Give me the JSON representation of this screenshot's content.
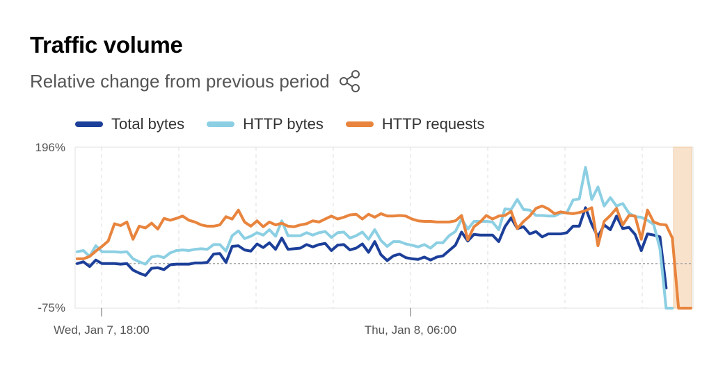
{
  "header": {
    "title": "Traffic volume",
    "subtitle": "Relative change from previous period",
    "share_icon": "share-icon"
  },
  "colors": {
    "total_bytes": "#1c3f99",
    "http_bytes": "#8ccfe3",
    "http_requests": "#e8843d",
    "highlight": "#f8e2cc"
  },
  "chart_data": {
    "type": "line",
    "ylim": [
      "-75%",
      "196%"
    ],
    "y_tick_labels": [
      "196%",
      "-75%"
    ],
    "x_tick_labels": [
      "Wed, Jan 7, 18:00",
      "Thu, Jan 8, 06:00"
    ],
    "grid": true,
    "legend_placement": "top-left",
    "series": [
      {
        "name": "Total bytes",
        "values": [
          0,
          3,
          -5,
          6,
          0,
          0,
          0,
          -1,
          0,
          -11,
          -16,
          -20,
          -8,
          -7,
          -10,
          -2,
          -1,
          -1,
          -1,
          1,
          1,
          2,
          16,
          17,
          2,
          29,
          30,
          23,
          21,
          33,
          27,
          35,
          24,
          43,
          24,
          25,
          26,
          32,
          28,
          32,
          34,
          22,
          31,
          32,
          23,
          26,
          33,
          19,
          37,
          15,
          5,
          13,
          16,
          10,
          8,
          7,
          11,
          6,
          11,
          13,
          22,
          31,
          53,
          38,
          49,
          48,
          48,
          48,
          37,
          62,
          77,
          59,
          62,
          50,
          54,
          45,
          50,
          50,
          50,
          52,
          63,
          63,
          94,
          66,
          45,
          65,
          57,
          80,
          59,
          61,
          49,
          22,
          50,
          48,
          45,
          -41
        ]
      },
      {
        "name": "HTTP bytes",
        "values": [
          20,
          22,
          12,
          30,
          20,
          20,
          20,
          19,
          20,
          8,
          3,
          -1,
          11,
          13,
          10,
          18,
          22,
          23,
          22,
          24,
          25,
          24,
          32,
          32,
          21,
          47,
          55,
          42,
          46,
          52,
          48,
          57,
          46,
          72,
          47,
          47,
          47,
          52,
          48,
          52,
          54,
          44,
          52,
          53,
          43,
          47,
          53,
          41,
          57,
          39,
          29,
          37,
          37,
          33,
          31,
          28,
          32,
          26,
          35,
          35,
          47,
          54,
          75,
          58,
          71,
          71,
          71,
          70,
          57,
          92,
          91,
          108,
          91,
          90,
          81,
          81,
          80,
          80,
          85,
          86,
          107,
          109,
          162,
          108,
          129,
          97,
          111,
          97,
          101,
          85,
          79,
          78,
          73,
          66,
          25,
          -75,
          -75
        ]
      },
      {
        "name": "HTTP requests",
        "values": [
          8,
          8,
          12,
          21,
          29,
          38,
          67,
          64,
          70,
          41,
          63,
          60,
          68,
          58,
          76,
          73,
          76,
          80,
          73,
          70,
          65,
          63,
          63,
          65,
          79,
          75,
          90,
          70,
          63,
          72,
          62,
          70,
          65,
          68,
          63,
          62,
          65,
          67,
          72,
          70,
          75,
          80,
          75,
          78,
          82,
          83,
          75,
          83,
          78,
          84,
          80,
          80,
          81,
          80,
          75,
          72,
          71,
          71,
          70,
          70,
          70,
          72,
          81,
          40,
          62,
          70,
          81,
          75,
          80,
          81,
          88,
          59,
          71,
          80,
          93,
          97,
          92,
          84,
          87,
          85,
          84,
          86,
          89,
          94,
          30,
          71,
          81,
          93,
          65,
          81,
          80,
          41,
          90,
          70,
          66,
          65,
          43,
          -75,
          -75,
          -75
        ]
      }
    ],
    "highlight_region": {
      "x_start_index": 96,
      "x_end_index": 99
    }
  }
}
